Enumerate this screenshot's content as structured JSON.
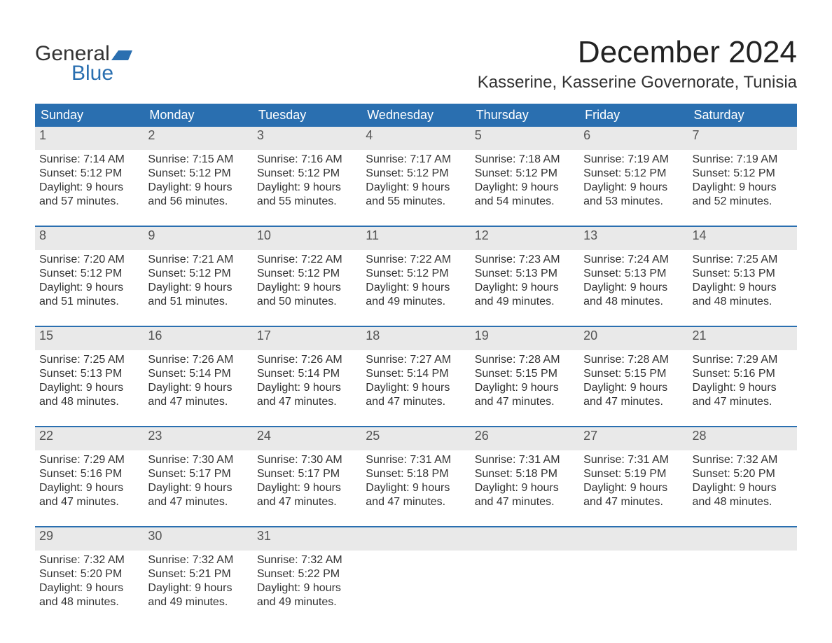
{
  "brand": {
    "general": "General",
    "blue": "Blue",
    "flag_color": "#2a6fb0"
  },
  "title": "December 2024",
  "location": "Kasserine, Kasserine Governorate, Tunisia",
  "day_headers": [
    "Sunday",
    "Monday",
    "Tuesday",
    "Wednesday",
    "Thursday",
    "Friday",
    "Saturday"
  ],
  "colors": {
    "header_bg": "#2a6fb0",
    "header_text": "#ffffff",
    "daynum_bg": "#e9e9e9",
    "rule": "#2a6fb0",
    "text": "#333333"
  },
  "typography": {
    "title_fontsize": 44,
    "location_fontsize": 24,
    "header_fontsize": 18,
    "body_fontsize": 16
  },
  "weeks": [
    [
      {
        "n": "1",
        "sr": "Sunrise: 7:14 AM",
        "ss": "Sunset: 5:12 PM",
        "d1": "Daylight: 9 hours",
        "d2": "and 57 minutes."
      },
      {
        "n": "2",
        "sr": "Sunrise: 7:15 AM",
        "ss": "Sunset: 5:12 PM",
        "d1": "Daylight: 9 hours",
        "d2": "and 56 minutes."
      },
      {
        "n": "3",
        "sr": "Sunrise: 7:16 AM",
        "ss": "Sunset: 5:12 PM",
        "d1": "Daylight: 9 hours",
        "d2": "and 55 minutes."
      },
      {
        "n": "4",
        "sr": "Sunrise: 7:17 AM",
        "ss": "Sunset: 5:12 PM",
        "d1": "Daylight: 9 hours",
        "d2": "and 55 minutes."
      },
      {
        "n": "5",
        "sr": "Sunrise: 7:18 AM",
        "ss": "Sunset: 5:12 PM",
        "d1": "Daylight: 9 hours",
        "d2": "and 54 minutes."
      },
      {
        "n": "6",
        "sr": "Sunrise: 7:19 AM",
        "ss": "Sunset: 5:12 PM",
        "d1": "Daylight: 9 hours",
        "d2": "and 53 minutes."
      },
      {
        "n": "7",
        "sr": "Sunrise: 7:19 AM",
        "ss": "Sunset: 5:12 PM",
        "d1": "Daylight: 9 hours",
        "d2": "and 52 minutes."
      }
    ],
    [
      {
        "n": "8",
        "sr": "Sunrise: 7:20 AM",
        "ss": "Sunset: 5:12 PM",
        "d1": "Daylight: 9 hours",
        "d2": "and 51 minutes."
      },
      {
        "n": "9",
        "sr": "Sunrise: 7:21 AM",
        "ss": "Sunset: 5:12 PM",
        "d1": "Daylight: 9 hours",
        "d2": "and 51 minutes."
      },
      {
        "n": "10",
        "sr": "Sunrise: 7:22 AM",
        "ss": "Sunset: 5:12 PM",
        "d1": "Daylight: 9 hours",
        "d2": "and 50 minutes."
      },
      {
        "n": "11",
        "sr": "Sunrise: 7:22 AM",
        "ss": "Sunset: 5:12 PM",
        "d1": "Daylight: 9 hours",
        "d2": "and 49 minutes."
      },
      {
        "n": "12",
        "sr": "Sunrise: 7:23 AM",
        "ss": "Sunset: 5:13 PM",
        "d1": "Daylight: 9 hours",
        "d2": "and 49 minutes."
      },
      {
        "n": "13",
        "sr": "Sunrise: 7:24 AM",
        "ss": "Sunset: 5:13 PM",
        "d1": "Daylight: 9 hours",
        "d2": "and 48 minutes."
      },
      {
        "n": "14",
        "sr": "Sunrise: 7:25 AM",
        "ss": "Sunset: 5:13 PM",
        "d1": "Daylight: 9 hours",
        "d2": "and 48 minutes."
      }
    ],
    [
      {
        "n": "15",
        "sr": "Sunrise: 7:25 AM",
        "ss": "Sunset: 5:13 PM",
        "d1": "Daylight: 9 hours",
        "d2": "and 48 minutes."
      },
      {
        "n": "16",
        "sr": "Sunrise: 7:26 AM",
        "ss": "Sunset: 5:14 PM",
        "d1": "Daylight: 9 hours",
        "d2": "and 47 minutes."
      },
      {
        "n": "17",
        "sr": "Sunrise: 7:26 AM",
        "ss": "Sunset: 5:14 PM",
        "d1": "Daylight: 9 hours",
        "d2": "and 47 minutes."
      },
      {
        "n": "18",
        "sr": "Sunrise: 7:27 AM",
        "ss": "Sunset: 5:14 PM",
        "d1": "Daylight: 9 hours",
        "d2": "and 47 minutes."
      },
      {
        "n": "19",
        "sr": "Sunrise: 7:28 AM",
        "ss": "Sunset: 5:15 PM",
        "d1": "Daylight: 9 hours",
        "d2": "and 47 minutes."
      },
      {
        "n": "20",
        "sr": "Sunrise: 7:28 AM",
        "ss": "Sunset: 5:15 PM",
        "d1": "Daylight: 9 hours",
        "d2": "and 47 minutes."
      },
      {
        "n": "21",
        "sr": "Sunrise: 7:29 AM",
        "ss": "Sunset: 5:16 PM",
        "d1": "Daylight: 9 hours",
        "d2": "and 47 minutes."
      }
    ],
    [
      {
        "n": "22",
        "sr": "Sunrise: 7:29 AM",
        "ss": "Sunset: 5:16 PM",
        "d1": "Daylight: 9 hours",
        "d2": "and 47 minutes."
      },
      {
        "n": "23",
        "sr": "Sunrise: 7:30 AM",
        "ss": "Sunset: 5:17 PM",
        "d1": "Daylight: 9 hours",
        "d2": "and 47 minutes."
      },
      {
        "n": "24",
        "sr": "Sunrise: 7:30 AM",
        "ss": "Sunset: 5:17 PM",
        "d1": "Daylight: 9 hours",
        "d2": "and 47 minutes."
      },
      {
        "n": "25",
        "sr": "Sunrise: 7:31 AM",
        "ss": "Sunset: 5:18 PM",
        "d1": "Daylight: 9 hours",
        "d2": "and 47 minutes."
      },
      {
        "n": "26",
        "sr": "Sunrise: 7:31 AM",
        "ss": "Sunset: 5:18 PM",
        "d1": "Daylight: 9 hours",
        "d2": "and 47 minutes."
      },
      {
        "n": "27",
        "sr": "Sunrise: 7:31 AM",
        "ss": "Sunset: 5:19 PM",
        "d1": "Daylight: 9 hours",
        "d2": "and 47 minutes."
      },
      {
        "n": "28",
        "sr": "Sunrise: 7:32 AM",
        "ss": "Sunset: 5:20 PM",
        "d1": "Daylight: 9 hours",
        "d2": "and 48 minutes."
      }
    ],
    [
      {
        "n": "29",
        "sr": "Sunrise: 7:32 AM",
        "ss": "Sunset: 5:20 PM",
        "d1": "Daylight: 9 hours",
        "d2": "and 48 minutes."
      },
      {
        "n": "30",
        "sr": "Sunrise: 7:32 AM",
        "ss": "Sunset: 5:21 PM",
        "d1": "Daylight: 9 hours",
        "d2": "and 49 minutes."
      },
      {
        "n": "31",
        "sr": "Sunrise: 7:32 AM",
        "ss": "Sunset: 5:22 PM",
        "d1": "Daylight: 9 hours",
        "d2": "and 49 minutes."
      },
      null,
      null,
      null,
      null
    ]
  ]
}
